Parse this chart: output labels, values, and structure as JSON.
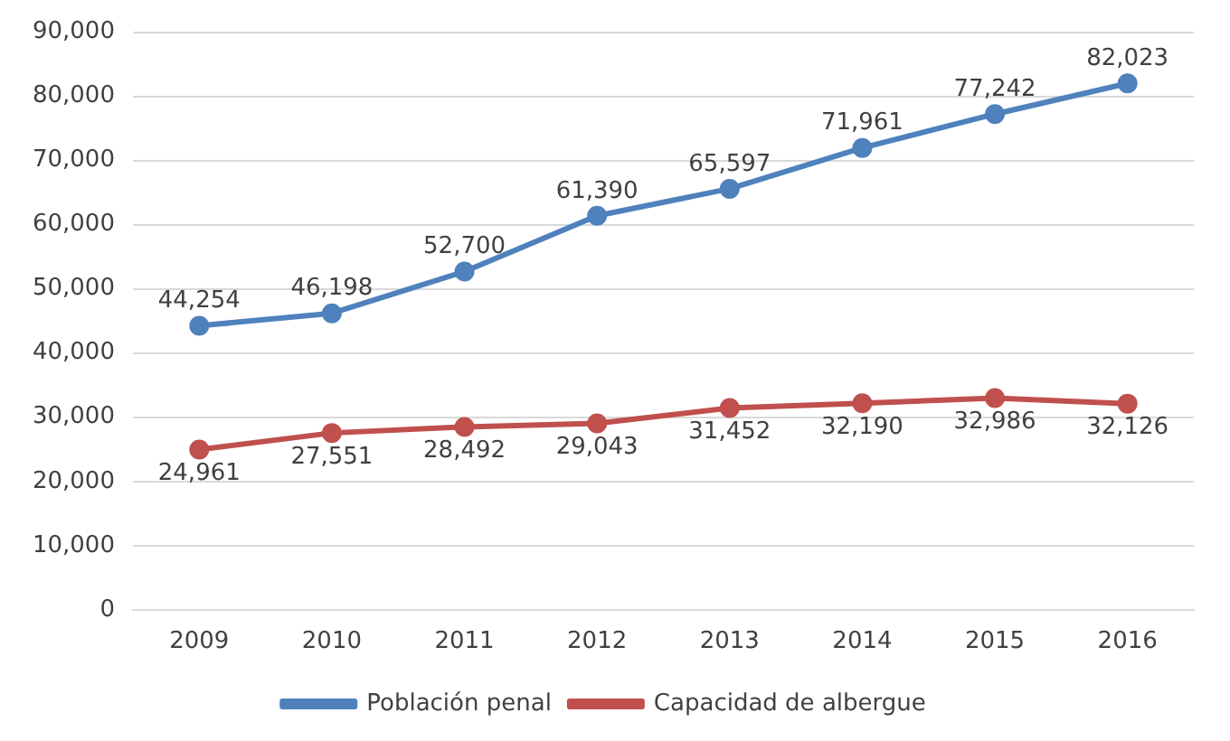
{
  "chart_data": {
    "type": "line",
    "categories": [
      "2009",
      "2010",
      "2011",
      "2012",
      "2013",
      "2014",
      "2015",
      "2016"
    ],
    "series": [
      {
        "name": "Población penal",
        "color": "#4f81bd",
        "values": [
          44254,
          46198,
          52700,
          61390,
          65597,
          71961,
          77242,
          82023
        ],
        "value_labels": [
          "44,254",
          "46,198",
          "52,700",
          "61,390",
          "65,597",
          "71,961",
          "77,242",
          "82,023"
        ]
      },
      {
        "name": "Capacidad de albergue",
        "color": "#c0504d",
        "values": [
          24961,
          27551,
          28492,
          29043,
          31452,
          32190,
          32986,
          32126
        ],
        "value_labels": [
          "24,961",
          "27,551",
          "28,492",
          "29,043",
          "31,452",
          "32,190",
          "32,986",
          "32,126"
        ]
      }
    ],
    "ylim": [
      0,
      90000
    ],
    "yticks": [
      {
        "value": 0,
        "label": "0"
      },
      {
        "value": 10000,
        "label": "10,000"
      },
      {
        "value": 20000,
        "label": "20,000"
      },
      {
        "value": 30000,
        "label": "30,000"
      },
      {
        "value": 40000,
        "label": "40,000"
      },
      {
        "value": 50000,
        "label": "50,000"
      },
      {
        "value": 60000,
        "label": "60,000"
      },
      {
        "value": 70000,
        "label": "70,000"
      },
      {
        "value": 80000,
        "label": "80,000"
      },
      {
        "value": 90000,
        "label": "90,000"
      }
    ],
    "grid": "y",
    "legend": "bottom",
    "marker": "circle",
    "line_style": "solid"
  }
}
